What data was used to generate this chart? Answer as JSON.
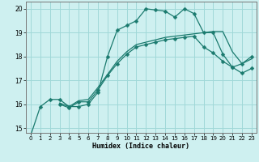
{
  "xlabel": "Humidex (Indice chaleur)",
  "bg_color": "#cef0f0",
  "grid_color": "#a0d8d8",
  "line_color": "#1a7a6e",
  "xlim": [
    -0.5,
    23.5
  ],
  "ylim": [
    14.8,
    20.3
  ],
  "xticks": [
    0,
    1,
    2,
    3,
    4,
    5,
    6,
    7,
    8,
    9,
    10,
    11,
    12,
    13,
    14,
    15,
    16,
    17,
    18,
    19,
    20,
    21,
    22,
    23
  ],
  "yticks": [
    15,
    16,
    17,
    18,
    19,
    20
  ],
  "line1_x": [
    0,
    1,
    2,
    3,
    4,
    5,
    6,
    7,
    8,
    9,
    10,
    11,
    12,
    13,
    14,
    15,
    16,
    17,
    18,
    19,
    20,
    21,
    22,
    23
  ],
  "line1_y": [
    14.7,
    15.9,
    16.2,
    16.2,
    15.9,
    15.9,
    16.0,
    16.5,
    18.0,
    19.1,
    19.3,
    19.5,
    20.0,
    19.95,
    19.9,
    19.65,
    20.0,
    19.8,
    19.0,
    19.0,
    18.1,
    17.55,
    17.7,
    18.0
  ],
  "line2_x": [
    3,
    4,
    5,
    6,
    7,
    8,
    9,
    10,
    11,
    12,
    13,
    14,
    15,
    16,
    17,
    18,
    19,
    20,
    21,
    22,
    23
  ],
  "line2_y": [
    16.0,
    15.85,
    16.1,
    16.1,
    16.6,
    17.2,
    17.7,
    18.1,
    18.4,
    18.5,
    18.6,
    18.7,
    18.75,
    18.8,
    18.85,
    18.4,
    18.15,
    17.8,
    17.55,
    17.3,
    17.5
  ],
  "line3_x": [
    3,
    4,
    5,
    6,
    7,
    8,
    9,
    10,
    11,
    12,
    13,
    14,
    15,
    16,
    17,
    18,
    19,
    20,
    21,
    22,
    23
  ],
  "line3_y": [
    16.05,
    15.9,
    16.15,
    16.2,
    16.7,
    17.25,
    17.8,
    18.2,
    18.5,
    18.6,
    18.7,
    18.8,
    18.85,
    18.9,
    18.95,
    19.0,
    19.05,
    19.05,
    18.2,
    17.7,
    17.9
  ]
}
